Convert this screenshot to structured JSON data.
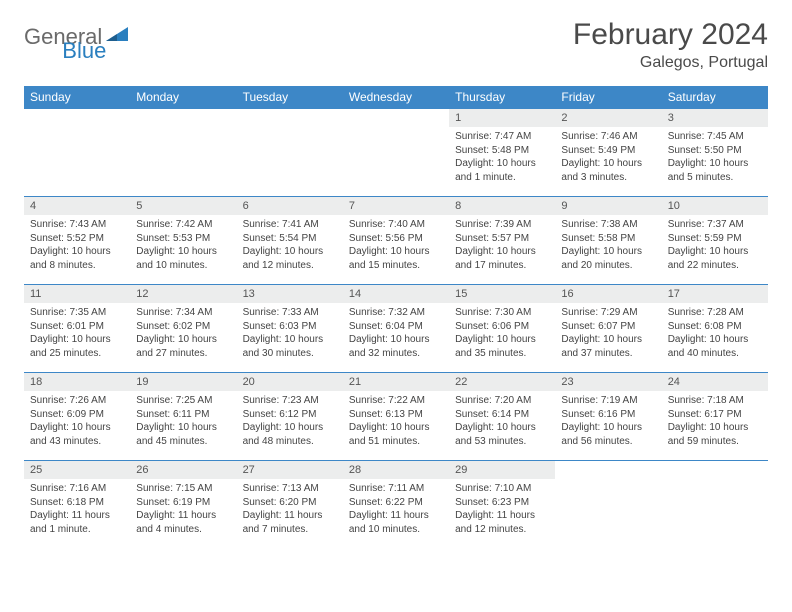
{
  "logo": {
    "text1": "General",
    "text2": "Blue"
  },
  "title": "February 2024",
  "location": "Galegos, Portugal",
  "colors": {
    "header_bg": "#3d87c7",
    "header_text": "#ffffff",
    "daynum_bg": "#eceded",
    "row_border": "#3d87c7",
    "logo_gray": "#6a6a6a",
    "logo_blue": "#2a7fbf"
  },
  "days_of_week": [
    "Sunday",
    "Monday",
    "Tuesday",
    "Wednesday",
    "Thursday",
    "Friday",
    "Saturday"
  ],
  "weeks": [
    [
      {
        "n": "",
        "sr": "",
        "ss": "",
        "dl": ""
      },
      {
        "n": "",
        "sr": "",
        "ss": "",
        "dl": ""
      },
      {
        "n": "",
        "sr": "",
        "ss": "",
        "dl": ""
      },
      {
        "n": "",
        "sr": "",
        "ss": "",
        "dl": ""
      },
      {
        "n": "1",
        "sr": "Sunrise: 7:47 AM",
        "ss": "Sunset: 5:48 PM",
        "dl": "Daylight: 10 hours and 1 minute."
      },
      {
        "n": "2",
        "sr": "Sunrise: 7:46 AM",
        "ss": "Sunset: 5:49 PM",
        "dl": "Daylight: 10 hours and 3 minutes."
      },
      {
        "n": "3",
        "sr": "Sunrise: 7:45 AM",
        "ss": "Sunset: 5:50 PM",
        "dl": "Daylight: 10 hours and 5 minutes."
      }
    ],
    [
      {
        "n": "4",
        "sr": "Sunrise: 7:43 AM",
        "ss": "Sunset: 5:52 PM",
        "dl": "Daylight: 10 hours and 8 minutes."
      },
      {
        "n": "5",
        "sr": "Sunrise: 7:42 AM",
        "ss": "Sunset: 5:53 PM",
        "dl": "Daylight: 10 hours and 10 minutes."
      },
      {
        "n": "6",
        "sr": "Sunrise: 7:41 AM",
        "ss": "Sunset: 5:54 PM",
        "dl": "Daylight: 10 hours and 12 minutes."
      },
      {
        "n": "7",
        "sr": "Sunrise: 7:40 AM",
        "ss": "Sunset: 5:56 PM",
        "dl": "Daylight: 10 hours and 15 minutes."
      },
      {
        "n": "8",
        "sr": "Sunrise: 7:39 AM",
        "ss": "Sunset: 5:57 PM",
        "dl": "Daylight: 10 hours and 17 minutes."
      },
      {
        "n": "9",
        "sr": "Sunrise: 7:38 AM",
        "ss": "Sunset: 5:58 PM",
        "dl": "Daylight: 10 hours and 20 minutes."
      },
      {
        "n": "10",
        "sr": "Sunrise: 7:37 AM",
        "ss": "Sunset: 5:59 PM",
        "dl": "Daylight: 10 hours and 22 minutes."
      }
    ],
    [
      {
        "n": "11",
        "sr": "Sunrise: 7:35 AM",
        "ss": "Sunset: 6:01 PM",
        "dl": "Daylight: 10 hours and 25 minutes."
      },
      {
        "n": "12",
        "sr": "Sunrise: 7:34 AM",
        "ss": "Sunset: 6:02 PM",
        "dl": "Daylight: 10 hours and 27 minutes."
      },
      {
        "n": "13",
        "sr": "Sunrise: 7:33 AM",
        "ss": "Sunset: 6:03 PM",
        "dl": "Daylight: 10 hours and 30 minutes."
      },
      {
        "n": "14",
        "sr": "Sunrise: 7:32 AM",
        "ss": "Sunset: 6:04 PM",
        "dl": "Daylight: 10 hours and 32 minutes."
      },
      {
        "n": "15",
        "sr": "Sunrise: 7:30 AM",
        "ss": "Sunset: 6:06 PM",
        "dl": "Daylight: 10 hours and 35 minutes."
      },
      {
        "n": "16",
        "sr": "Sunrise: 7:29 AM",
        "ss": "Sunset: 6:07 PM",
        "dl": "Daylight: 10 hours and 37 minutes."
      },
      {
        "n": "17",
        "sr": "Sunrise: 7:28 AM",
        "ss": "Sunset: 6:08 PM",
        "dl": "Daylight: 10 hours and 40 minutes."
      }
    ],
    [
      {
        "n": "18",
        "sr": "Sunrise: 7:26 AM",
        "ss": "Sunset: 6:09 PM",
        "dl": "Daylight: 10 hours and 43 minutes."
      },
      {
        "n": "19",
        "sr": "Sunrise: 7:25 AM",
        "ss": "Sunset: 6:11 PM",
        "dl": "Daylight: 10 hours and 45 minutes."
      },
      {
        "n": "20",
        "sr": "Sunrise: 7:23 AM",
        "ss": "Sunset: 6:12 PM",
        "dl": "Daylight: 10 hours and 48 minutes."
      },
      {
        "n": "21",
        "sr": "Sunrise: 7:22 AM",
        "ss": "Sunset: 6:13 PM",
        "dl": "Daylight: 10 hours and 51 minutes."
      },
      {
        "n": "22",
        "sr": "Sunrise: 7:20 AM",
        "ss": "Sunset: 6:14 PM",
        "dl": "Daylight: 10 hours and 53 minutes."
      },
      {
        "n": "23",
        "sr": "Sunrise: 7:19 AM",
        "ss": "Sunset: 6:16 PM",
        "dl": "Daylight: 10 hours and 56 minutes."
      },
      {
        "n": "24",
        "sr": "Sunrise: 7:18 AM",
        "ss": "Sunset: 6:17 PM",
        "dl": "Daylight: 10 hours and 59 minutes."
      }
    ],
    [
      {
        "n": "25",
        "sr": "Sunrise: 7:16 AM",
        "ss": "Sunset: 6:18 PM",
        "dl": "Daylight: 11 hours and 1 minute."
      },
      {
        "n": "26",
        "sr": "Sunrise: 7:15 AM",
        "ss": "Sunset: 6:19 PM",
        "dl": "Daylight: 11 hours and 4 minutes."
      },
      {
        "n": "27",
        "sr": "Sunrise: 7:13 AM",
        "ss": "Sunset: 6:20 PM",
        "dl": "Daylight: 11 hours and 7 minutes."
      },
      {
        "n": "28",
        "sr": "Sunrise: 7:11 AM",
        "ss": "Sunset: 6:22 PM",
        "dl": "Daylight: 11 hours and 10 minutes."
      },
      {
        "n": "29",
        "sr": "Sunrise: 7:10 AM",
        "ss": "Sunset: 6:23 PM",
        "dl": "Daylight: 11 hours and 12 minutes."
      },
      {
        "n": "",
        "sr": "",
        "ss": "",
        "dl": ""
      },
      {
        "n": "",
        "sr": "",
        "ss": "",
        "dl": ""
      }
    ]
  ]
}
